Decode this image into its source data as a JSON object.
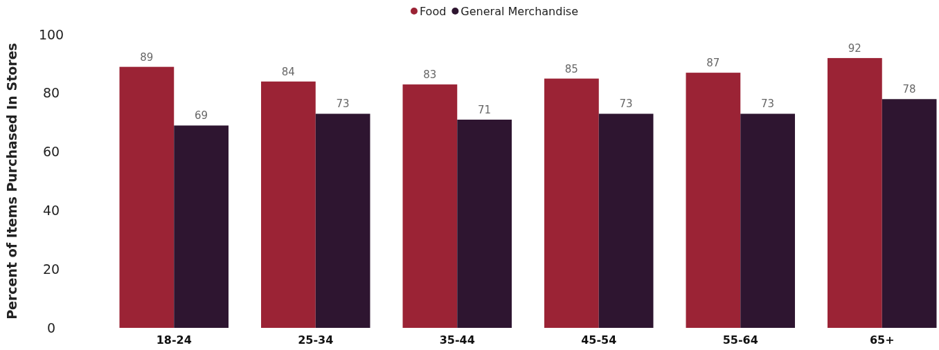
{
  "chart_data": {
    "type": "bar",
    "ylabel": "Percent of Items Purchased In Stores",
    "categories": [
      "18-24",
      "25-34",
      "35-44",
      "45-54",
      "55-64",
      "65+"
    ],
    "series": [
      {
        "name": "Food",
        "color": "#9b2335",
        "values": [
          89,
          84,
          83,
          85,
          87,
          92
        ]
      },
      {
        "name": "General Merchandise",
        "color": "#2e1530",
        "values": [
          69,
          73,
          71,
          73,
          73,
          78
        ]
      }
    ],
    "ylim": [
      0,
      100
    ],
    "yticks": [
      0,
      20,
      40,
      60,
      80,
      100
    ],
    "data_labels": true,
    "legend": "top",
    "grid": false
  }
}
